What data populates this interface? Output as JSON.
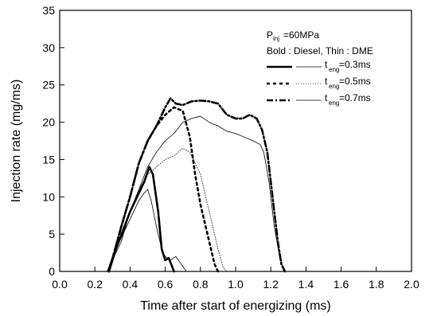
{
  "chart_data": {
    "type": "line",
    "xlabel": "Time after start of energizing (ms)",
    "ylabel": "Injection rate (mg/ms)",
    "xlim": [
      0.0,
      2.0
    ],
    "ylim": [
      0,
      35
    ],
    "xticks": [
      "0.0",
      "0.2",
      "0.4",
      "0.6",
      "0.8",
      "1.0",
      "1.2",
      "1.4",
      "1.6",
      "1.8",
      "2.0"
    ],
    "yticks": [
      "0",
      "5",
      "10",
      "15",
      "20",
      "25",
      "30",
      "35"
    ],
    "grid": false,
    "legend_position": "top-right",
    "annotations": {
      "pressure_main": "P",
      "pressure_sub": "inj",
      "pressure_value": "=60MPa",
      "fuel_note": "Bold : Diesel, Thin : DME"
    },
    "legend": [
      {
        "prefix": "t",
        "sub": "eng",
        "value": "=0.3ms"
      },
      {
        "prefix": "t",
        "sub": "eng",
        "value": "=0.5ms"
      },
      {
        "prefix": "t",
        "sub": "eng",
        "value": "=0.7ms"
      }
    ],
    "series": [
      {
        "style": "bold-solid",
        "x": [
          0.28,
          0.32,
          0.36,
          0.4,
          0.44,
          0.48,
          0.51,
          0.53,
          0.56,
          0.58,
          0.6,
          0.62,
          0.65
        ],
        "y": [
          0,
          3,
          5.5,
          8,
          10,
          12,
          14,
          13,
          8,
          3,
          1.5,
          1.8,
          0
        ]
      },
      {
        "style": "thin-solid",
        "x": [
          0.27,
          0.3,
          0.35,
          0.4,
          0.45,
          0.48,
          0.5,
          0.52,
          0.55,
          0.58,
          0.6,
          0.63,
          0.66,
          0.69,
          0.72
        ],
        "y": [
          0,
          2,
          4.5,
          7,
          9.5,
          10.5,
          11,
          9.5,
          6,
          3,
          2,
          1.5,
          2,
          1,
          0
        ]
      },
      {
        "style": "bold-dotted",
        "x": [
          0.28,
          0.35,
          0.4,
          0.45,
          0.5,
          0.55,
          0.6,
          0.65,
          0.7,
          0.74,
          0.77,
          0.8,
          0.83,
          0.86,
          0.88,
          0.9
        ],
        "y": [
          0,
          6,
          10,
          14.5,
          17.5,
          19.5,
          21,
          22,
          21.5,
          18,
          13,
          9,
          6,
          3,
          1,
          0
        ]
      },
      {
        "style": "thin-dotted",
        "x": [
          0.27,
          0.33,
          0.4,
          0.45,
          0.5,
          0.55,
          0.6,
          0.65,
          0.7,
          0.74,
          0.77,
          0.8,
          0.83,
          0.86,
          0.9,
          0.93,
          0.95
        ],
        "y": [
          0,
          3.5,
          8,
          11,
          13,
          14,
          15,
          15.5,
          16.5,
          16,
          14.5,
          13,
          10,
          7,
          3,
          0.5,
          0
        ]
      },
      {
        "style": "bold-dashdot",
        "x": [
          0.28,
          0.35,
          0.4,
          0.45,
          0.5,
          0.55,
          0.6,
          0.63,
          0.66,
          0.7,
          0.75,
          0.8,
          0.85,
          0.9,
          0.95,
          1.0,
          1.04,
          1.08,
          1.12,
          1.15,
          1.18,
          1.2,
          1.22,
          1.24,
          1.26,
          1.28
        ],
        "y": [
          0,
          6,
          10,
          14.5,
          17.5,
          19.5,
          22,
          23.2,
          22.5,
          22.3,
          22.8,
          22.9,
          22.8,
          22.5,
          21,
          20.5,
          20.5,
          21,
          20.5,
          19,
          16,
          12,
          8,
          4,
          1,
          0
        ]
      },
      {
        "style": "thin-solid-long",
        "x": [
          0.27,
          0.35,
          0.4,
          0.45,
          0.5,
          0.55,
          0.6,
          0.65,
          0.7,
          0.75,
          0.8,
          0.85,
          0.9,
          0.95,
          1.0,
          1.05,
          1.1,
          1.14,
          1.16,
          1.19,
          1.22,
          1.25,
          1.27,
          1.28
        ],
        "y": [
          0,
          4,
          8,
          11,
          14,
          16,
          17.5,
          18.5,
          20,
          20.5,
          20.8,
          20,
          19.5,
          18.8,
          18.5,
          18,
          17.5,
          17,
          16,
          12,
          6,
          2,
          0.5,
          0
        ]
      }
    ]
  }
}
